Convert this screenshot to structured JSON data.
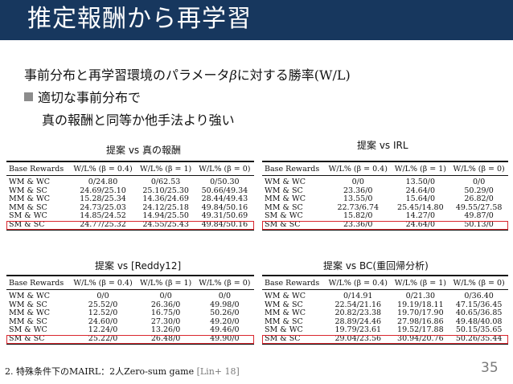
{
  "title": "推定報酬から再学習",
  "lines": {
    "line1_pre": "事前分布と再学習環境のパラメータ",
    "line1_beta": "β",
    "line1_mid": "に対する勝率",
    "line1_wl": "(W/L)",
    "line2": "適切な事前分布で",
    "line3": "真の報酬と同等か他手法より強い"
  },
  "tables": [
    {
      "caption": "提案 vs 真の報酬",
      "headers": [
        "Base Rewards",
        "W/L% (β = 0.4)",
        "W/L% (β = 1)",
        "W/L% (β = 0)"
      ],
      "rows": [
        [
          "WM & WC",
          "0/24.80",
          "0/62.53",
          "0/50.30"
        ],
        [
          "WM & SC",
          "24.69/25.10",
          "25.10/25.30",
          "50.66/49.34"
        ],
        [
          "MM & WC",
          "15.28/25.34",
          "14.36/24.69",
          "28.44/49.43"
        ],
        [
          "MM & SC",
          "24.73/25.03",
          "24.12/25.18",
          "49.84/50.16"
        ],
        [
          "SM & WC",
          "14.85/24.52",
          "14.94/25.50",
          "49.31/50.69"
        ],
        [
          "SM & SC",
          "24.77/25.32",
          "24.55/25.43",
          "49.84/50.16"
        ]
      ]
    },
    {
      "caption": "提案 vs IRL",
      "headers": [
        "Base Rewards",
        "W/L% (β = 0.4)",
        "W/L% (β = 1)",
        "W/L% (β = 0)"
      ],
      "rows": [
        [
          "WM & WC",
          "0/0",
          "13.50/0",
          "0/0"
        ],
        [
          "WM & SC",
          "23.36/0",
          "24.64/0",
          "50.29/0"
        ],
        [
          "MM & WC",
          "13.55/0",
          "15.64/0",
          "26.82/0"
        ],
        [
          "MM & SC",
          "22.73/6.74",
          "25.45/14.80",
          "49.55/27.58"
        ],
        [
          "SM & WC",
          "15.82/0",
          "14.27/0",
          "49.87/0"
        ],
        [
          "SM & SC",
          "23.36/0",
          "24.64/0",
          "50.13/0"
        ]
      ]
    },
    {
      "caption": "提案 vs [Reddy12]",
      "headers": [
        "Base Rewards",
        "W/L% (β = 0.4)",
        "W/L% (β = 1)",
        "W/L% (β = 0)"
      ],
      "rows": [
        [
          "WM & WC",
          "0/0",
          "0/0",
          "0/0"
        ],
        [
          "WM & SC",
          "25.52/0",
          "26.36/0",
          "49.98/0"
        ],
        [
          "MM & WC",
          "12.52/0",
          "16.75/0",
          "50.26/0"
        ],
        [
          "MM & SC",
          "24.60/0",
          "27.30/0",
          "49.20/0"
        ],
        [
          "SM & WC",
          "12.24/0",
          "13.26/0",
          "49.46/0"
        ],
        [
          "SM & SC",
          "25.22/0",
          "26.48/0",
          "49.90/0"
        ]
      ]
    },
    {
      "caption": "提案 vs BC(重回帰分析)",
      "headers": [
        "Base Rewards",
        "W/L% (β = 0.4)",
        "W/L% (β = 1)",
        "W/L% (β = 0)"
      ],
      "rows": [
        [
          "WM & WC",
          "0/14.91",
          "0/21.30",
          "0/36.40"
        ],
        [
          "WM & SC",
          "22.54/21.16",
          "19.19/18.11",
          "47.15/36.45"
        ],
        [
          "MM & WC",
          "20.82/23.38",
          "19.70/17.90",
          "40.65/36.85"
        ],
        [
          "MM & SC",
          "28.89/24.46",
          "27.98/16.86",
          "49.48/40.08"
        ],
        [
          "SM & WC",
          "19.79/23.61",
          "19.52/17.88",
          "50.15/35.65"
        ],
        [
          "SM & SC",
          "29.04/23.56",
          "30.94/20.76",
          "50.26/35.44"
        ]
      ]
    }
  ],
  "footer": {
    "text": "2. 特殊条件下のMAIRL：2人Zero-sum game",
    "ref": "[Lin+ 18]"
  },
  "page_number": "35"
}
